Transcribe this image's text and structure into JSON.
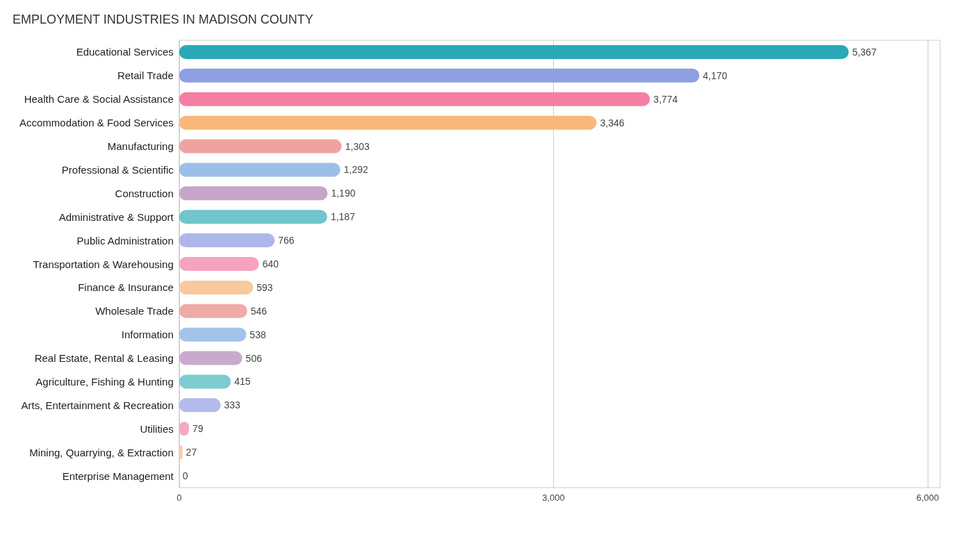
{
  "chart_data": {
    "type": "bar",
    "orientation": "horizontal",
    "title": "EMPLOYMENT INDUSTRIES IN MADISON COUNTY",
    "categories": [
      "Educational Services",
      "Retail Trade",
      "Health Care & Social Assistance",
      "Accommodation & Food Services",
      "Manufacturing",
      "Professional & Scientific",
      "Construction",
      "Administrative & Support",
      "Public Administration",
      "Transportation & Warehousing",
      "Finance & Insurance",
      "Wholesale Trade",
      "Information",
      "Real Estate, Rental & Leasing",
      "Agriculture, Fishing & Hunting",
      "Arts, Entertainment & Recreation",
      "Utilities",
      "Mining, Quarrying, & Extraction",
      "Enterprise Management"
    ],
    "values": [
      5367,
      4170,
      3774,
      3346,
      1303,
      1292,
      1190,
      1187,
      766,
      640,
      593,
      546,
      538,
      506,
      415,
      333,
      79,
      27,
      0
    ],
    "colors": [
      "#2aa8b8",
      "#8f9fe3",
      "#f57fa3",
      "#f9b87a",
      "#eea3a0",
      "#9bbfe8",
      "#c7a5c9",
      "#71c5cc",
      "#aeb6ea",
      "#f6a3bf",
      "#f9c99e",
      "#eeaaa6",
      "#a3c3ea",
      "#c9aacd",
      "#7ccbd1",
      "#b3bbec",
      "#f6a8c2",
      "#f9cca3",
      "#f0aeab"
    ],
    "xlim": [
      0,
      6100
    ],
    "xticks": [
      {
        "value": 0,
        "label": "0"
      },
      {
        "value": 3000,
        "label": "3,000"
      },
      {
        "value": 6000,
        "label": "6,000"
      }
    ],
    "value_labels": [
      "5,367",
      "4,170",
      "3,774",
      "3,346",
      "1,303",
      "1,292",
      "1,190",
      "1,187",
      "766",
      "640",
      "593",
      "546",
      "538",
      "506",
      "415",
      "333",
      "79",
      "27",
      "0"
    ],
    "grid": "x"
  }
}
